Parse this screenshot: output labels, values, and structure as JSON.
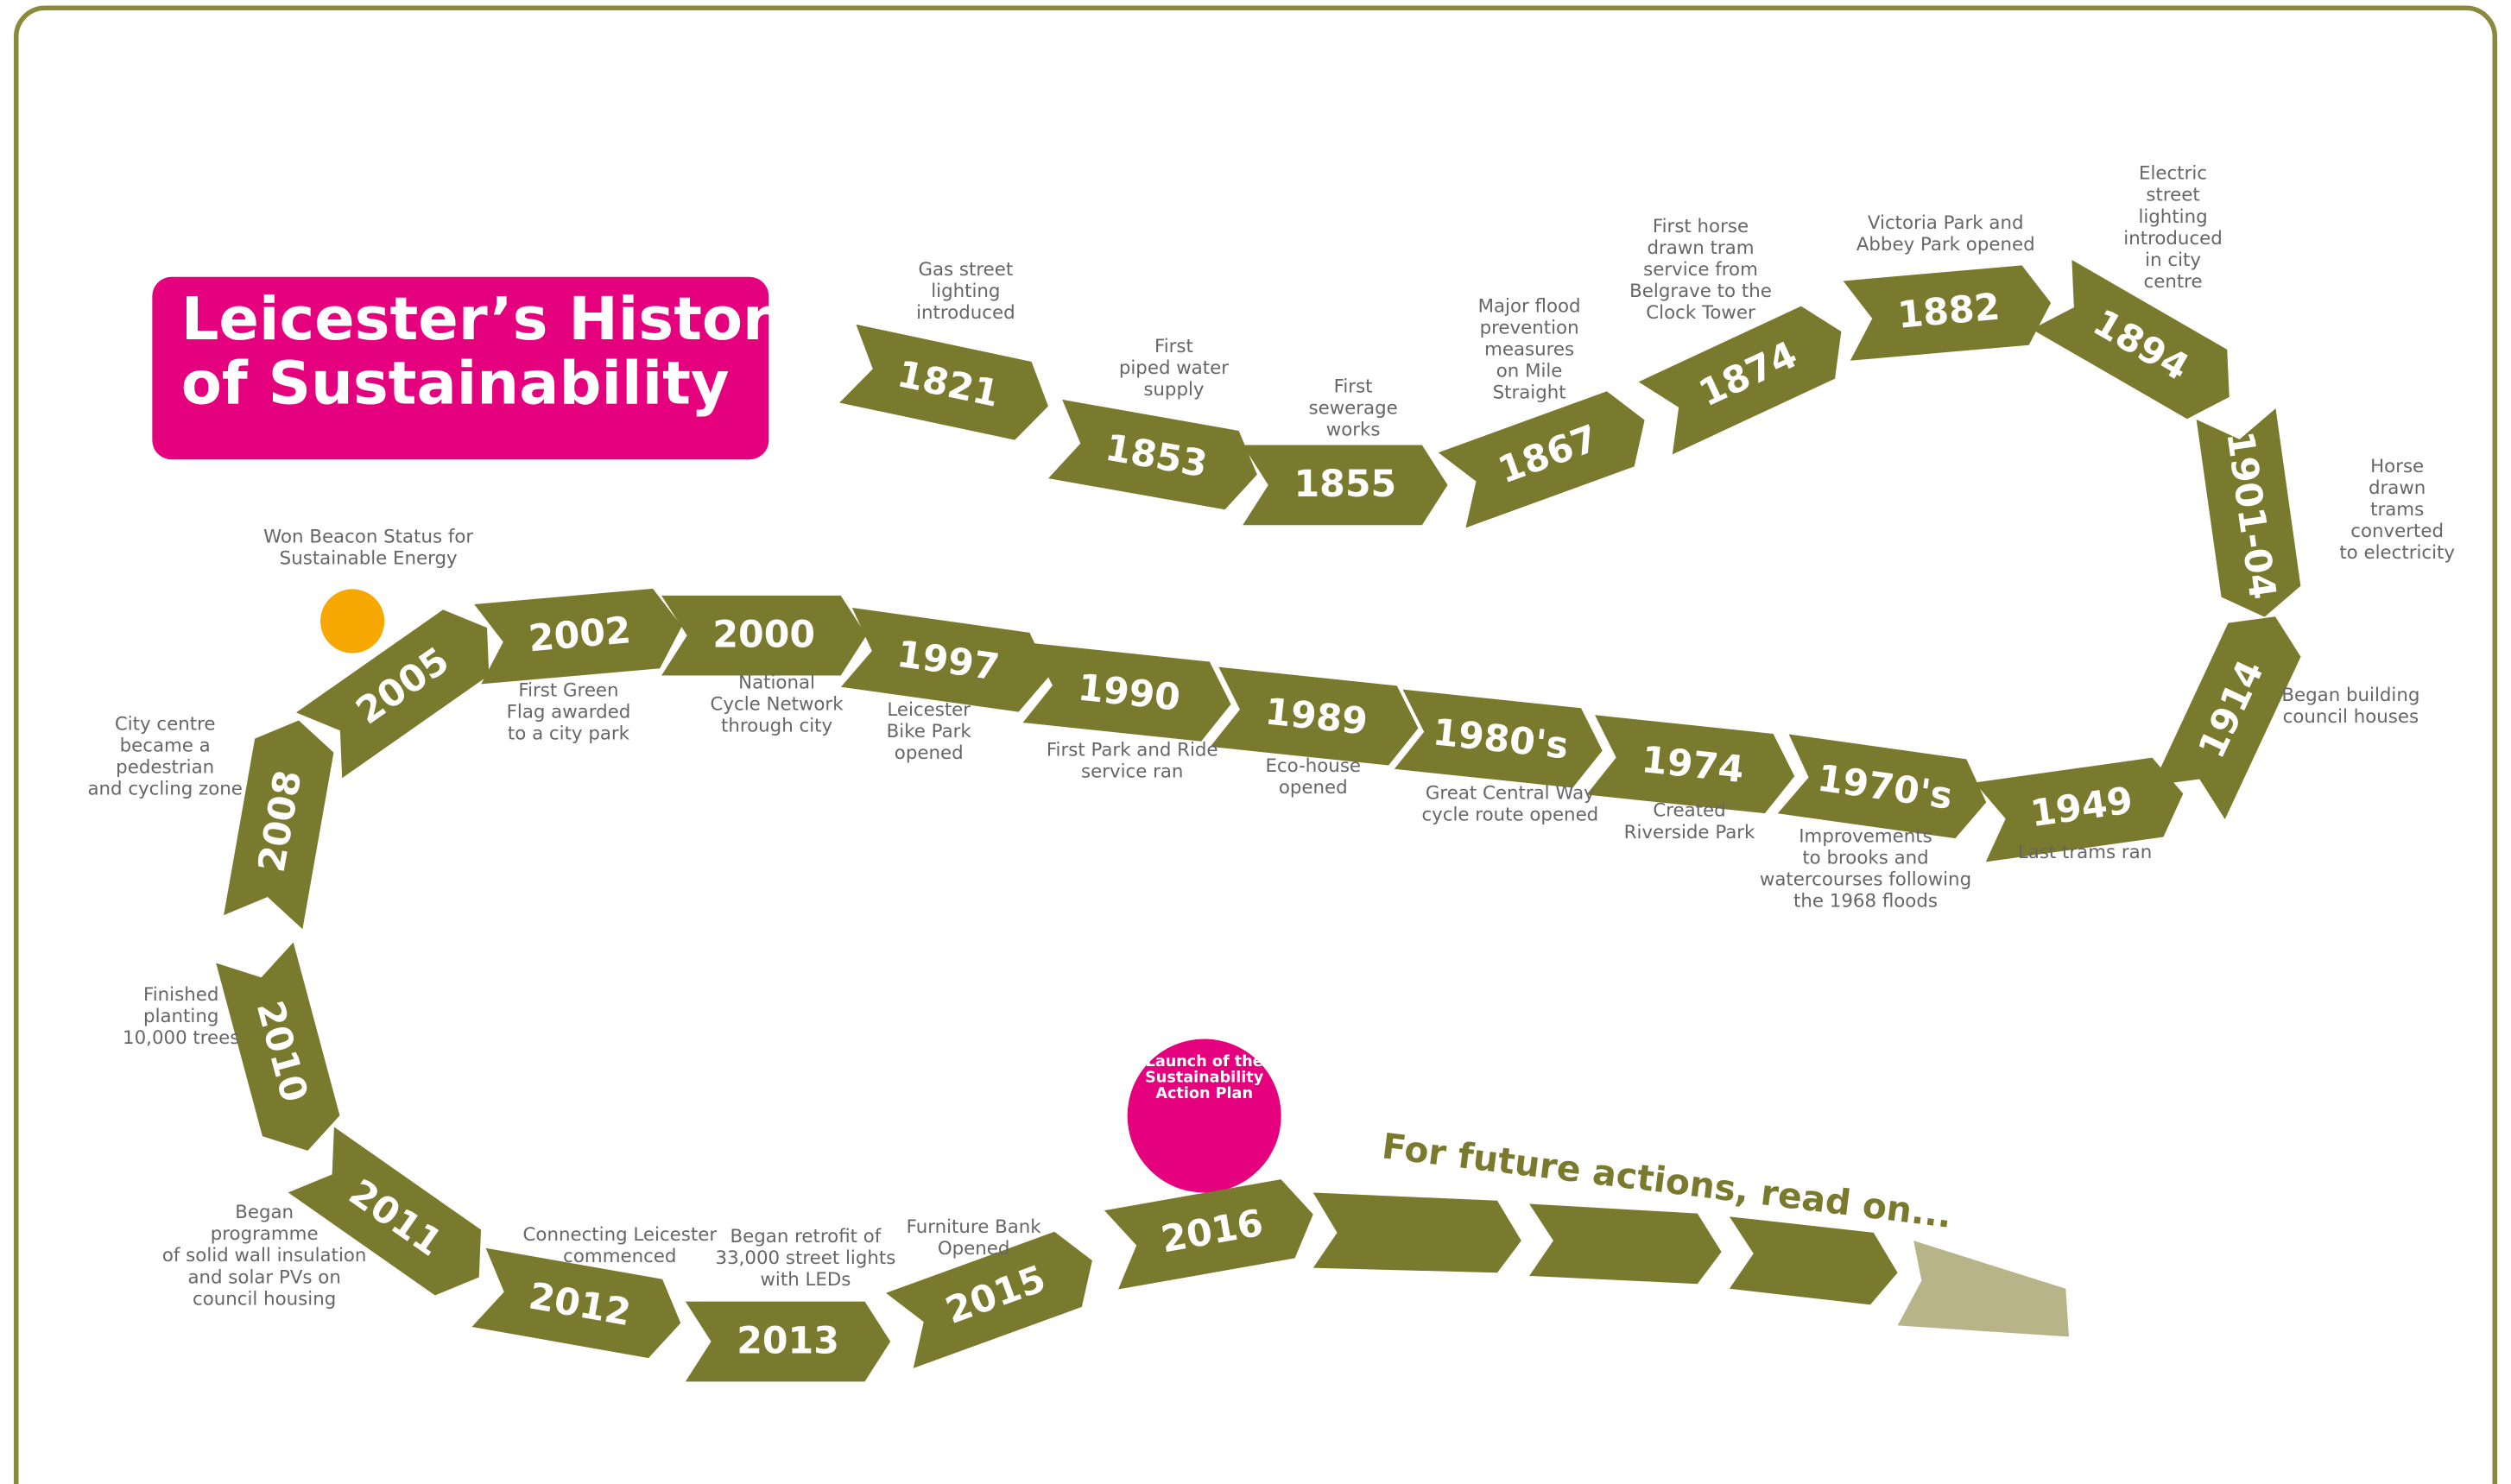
{
  "title": [
    "Leicester’s History",
    "of Sustainability"
  ],
  "events": [
    {
      "year": "1821",
      "caption": [
        "Gas street",
        "lighting",
        "introduced"
      ]
    },
    {
      "year": "1853",
      "caption": [
        "First",
        "piped water",
        "supply"
      ]
    },
    {
      "year": "1855",
      "caption": [
        "First",
        "sewerage",
        "works"
      ]
    },
    {
      "year": "1867",
      "caption": [
        "Major flood",
        "prevention",
        "measures",
        "on Mile",
        "Straight"
      ]
    },
    {
      "year": "1874",
      "caption": [
        "First horse",
        "drawn tram",
        "service from",
        "Belgrave to the",
        "Clock Tower"
      ]
    },
    {
      "year": "1882",
      "caption": [
        "Victoria Park and",
        "Abbey Park opened"
      ]
    },
    {
      "year": "1894",
      "caption": [
        "Electric",
        "street",
        "lighting",
        "introduced",
        "in city",
        "centre"
      ]
    },
    {
      "year": "1901-04",
      "caption": [
        "Horse",
        "drawn",
        "trams",
        "converted",
        "to electricity"
      ]
    },
    {
      "year": "1914",
      "caption": [
        "Began building",
        "council houses"
      ]
    },
    {
      "year": "1949",
      "caption": [
        "Last trams ran"
      ]
    },
    {
      "year": "1970's",
      "caption": [
        "Improvements",
        "to brooks and",
        "watercourses following",
        "the 1968 floods"
      ]
    },
    {
      "year": "1974",
      "caption": [
        "Created",
        "Riverside Park"
      ]
    },
    {
      "year": "1980's",
      "caption": [
        "Great Central Way",
        "cycle route opened"
      ]
    },
    {
      "year": "1989",
      "caption": [
        "Eco-house",
        "opened"
      ]
    },
    {
      "year": "1990",
      "caption": [
        "First Park and Ride",
        "service ran"
      ]
    },
    {
      "year": "1997",
      "caption": [
        "Leicester",
        "Bike Park",
        "opened"
      ]
    },
    {
      "year": "2000",
      "caption": [
        "National",
        "Cycle Network",
        "through city"
      ]
    },
    {
      "year": "2002",
      "caption": [
        "First Green",
        "Flag awarded",
        "to a city park"
      ]
    },
    {
      "year": "2005",
      "caption": [
        "Won Beacon Status for",
        "Sustainable Energy"
      ]
    },
    {
      "year": "2008",
      "caption": [
        "City centre",
        "became a",
        "pedestrian",
        "and cycling zone"
      ]
    },
    {
      "year": "2010",
      "caption": [
        "Finished",
        "planting",
        "10,000 trees"
      ]
    },
    {
      "year": "2011",
      "caption": [
        "Began",
        "programme",
        "of solid wall insulation",
        "and solar PVs on",
        "council housing"
      ]
    },
    {
      "year": "2012",
      "caption": [
        "Connecting Leicester",
        "commenced"
      ]
    },
    {
      "year": "2013",
      "caption": [
        "Began retrofit of",
        "33,000 street lights",
        "with LEDs"
      ]
    },
    {
      "year": "2015",
      "caption": [
        "Furniture Bank",
        "Opened"
      ]
    },
    {
      "year": "2016",
      "caption": [
        "Launch of the",
        "Sustainability",
        "Action Plan"
      ]
    }
  ],
  "footer": "For future actions, read on..."
}
